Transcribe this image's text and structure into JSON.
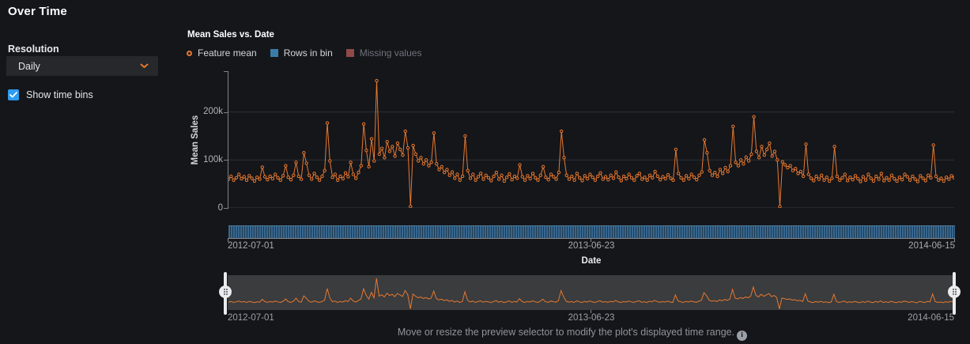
{
  "page": {
    "title": "Over Time"
  },
  "sidebar": {
    "resolution_label": "Resolution",
    "resolution_value": "Daily",
    "show_time_bins_label": "Show time bins",
    "show_time_bins_checked": true,
    "checkbox_color": "#2d9bf0"
  },
  "chart": {
    "title": "Mean Sales vs. Date",
    "ylabel": "Mean Sales",
    "xlabel": "Date",
    "yticks": [
      "0",
      "100k",
      "200k"
    ],
    "xticks": [
      "2012-07-01",
      "2013-06-23",
      "2014-06-15"
    ],
    "legend": [
      {
        "label": "Feature mean",
        "marker": "ring",
        "color": "#E8782E",
        "enabled": true
      },
      {
        "label": "Rows in bin",
        "marker": "square",
        "color": "#3A7CA8",
        "enabled": true
      },
      {
        "label": "Missing values",
        "marker": "square",
        "color": "#8F4A47",
        "enabled": false
      }
    ]
  },
  "chart_data": {
    "type": "line",
    "title": "Mean Sales vs. Date",
    "xlabel": "Date",
    "ylabel": "Mean Sales",
    "x_start": "2012-07-01",
    "x_end": "2014-06-15",
    "x_tick_labels": [
      "2012-07-01",
      "2013-06-23",
      "2014-06-15"
    ],
    "y_tick_labels": [
      "0",
      "100k",
      "200k"
    ],
    "ylim_k": [
      0,
      285
    ],
    "resolution": "Daily",
    "grid": "horizontal",
    "legend_position": "top-left",
    "series": [
      {
        "name": "Feature mean",
        "type": "line+markers",
        "color": "#E8782E",
        "values_unit": "thousands (k), estimated from gridlines",
        "values_k": [
          60,
          66,
          58,
          63,
          70,
          61,
          65,
          58,
          67,
          62,
          56,
          64,
          60,
          85,
          65,
          59,
          66,
          61,
          70,
          63,
          58,
          67,
          88,
          64,
          59,
          68,
          95,
          66,
          60,
          115,
          93,
          68,
          60,
          72,
          64,
          58,
          66,
          78,
          177,
          98,
          64,
          70,
          58,
          66,
          61,
          73,
          65,
          95,
          70,
          62,
          74,
          88,
          175,
          120,
          86,
          144,
          98,
          265,
          112,
          124,
          105,
          138,
          118,
          128,
          108,
          135,
          122,
          110,
          160,
          125,
          3,
          130,
          112,
          98,
          105,
          92,
          100,
          88,
          95,
          156,
          92,
          80,
          86,
          74,
          80,
          68,
          75,
          62,
          70,
          58,
          66,
          150,
          78,
          62,
          70,
          58,
          65,
          72,
          60,
          68,
          63,
          57,
          66,
          74,
          60,
          68,
          56,
          64,
          71,
          59,
          66,
          62,
          90,
          65,
          58,
          67,
          61,
          72,
          63,
          58,
          68,
          86,
          64,
          59,
          70,
          65,
          60,
          74,
          160,
          105,
          68,
          60,
          66,
          58,
          72,
          63,
          57,
          67,
          61,
          70,
          64,
          58,
          66,
          73,
          60,
          65,
          59,
          68,
          62,
          75,
          64,
          57,
          66,
          61,
          70,
          63,
          58,
          67,
          72,
          60,
          64,
          58,
          68,
          63,
          76,
          66,
          59,
          65,
          61,
          69,
          62,
          58,
          122,
          72,
          63,
          58,
          67,
          61,
          70,
          64,
          59,
          68,
          75,
          142,
          115,
          78,
          68,
          74,
          66,
          80,
          72,
          84,
          76,
          88,
          170,
          95,
          88,
          100,
          92,
          106,
          98,
          112,
          190,
          118,
          105,
          128,
          110,
          122,
          135,
          108,
          118,
          100,
          3,
          96,
          90,
          84,
          88,
          78,
          82,
          72,
          76,
          66,
          133,
          70,
          62,
          57,
          66,
          60,
          68,
          58,
          64,
          56,
          62,
          128,
          66,
          58,
          63,
          70,
          57,
          64,
          59,
          67,
          61,
          55,
          65,
          58,
          70,
          62,
          56,
          66,
          60,
          72,
          57,
          63,
          58,
          68,
          61,
          56,
          64,
          59,
          70,
          65,
          58,
          66,
          60,
          55,
          67,
          62,
          57,
          68,
          63,
          131,
          66,
          58,
          62,
          56,
          64,
          60,
          67,
          63
        ]
      },
      {
        "name": "Rows in bin",
        "type": "bar",
        "color": "#33618C",
        "note": "uniform-height daily bin strip rendered under the plot"
      },
      {
        "name": "Missing values",
        "type": "bar",
        "color": "#8F4A47",
        "enabled": false,
        "note": "no missing-value bars visible"
      }
    ]
  },
  "preview": {
    "xticks": [
      "2012-07-01",
      "2013-06-23",
      "2014-06-15"
    ],
    "hint": "Move or resize the preview selector to modify the plot's displayed time range.",
    "info_icon_glyph": "i",
    "note": "mini chart shows same Feature mean series; selector spans full range"
  }
}
